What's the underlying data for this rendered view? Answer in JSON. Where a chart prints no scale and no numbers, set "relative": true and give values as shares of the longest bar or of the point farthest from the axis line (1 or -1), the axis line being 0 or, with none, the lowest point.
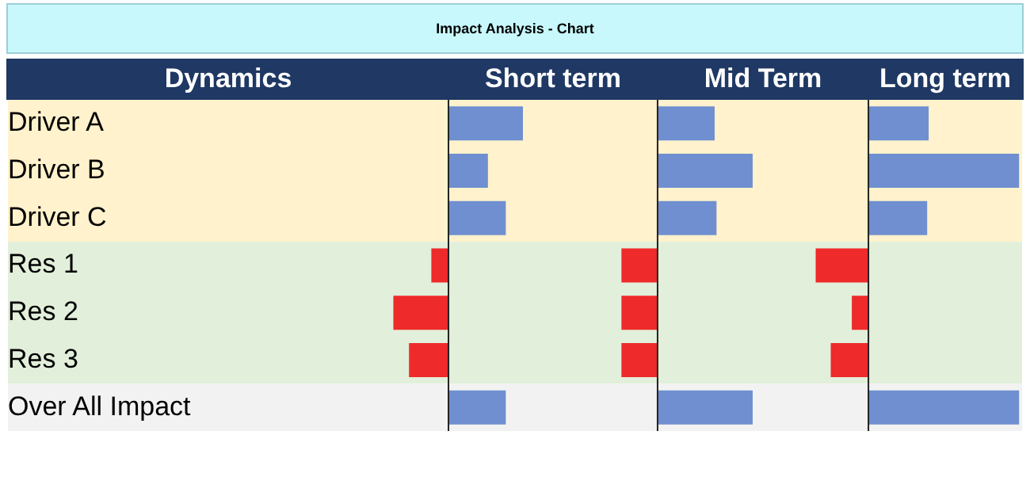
{
  "chart_data": [
    {
      "type": "bar",
      "orientation": "horizontal",
      "relative": true,
      "title": "Impact Analysis - Chart",
      "ylabel": "Dynamics",
      "xlabel": "Short term",
      "tick_labels": "y",
      "categories": [
        "Driver A",
        "Driver B",
        "Driver C",
        "Res 1",
        "Res 2",
        "Res 3",
        "Over All Impact"
      ],
      "values": [
        1,
        0.53,
        0.77,
        -0.23,
        -0.74,
        -0.53,
        0.77
      ],
      "colors": [
        "#6f8fd0",
        "#6f8fd0",
        "#6f8fd0",
        "#ee2a2a",
        "#ee2a2a",
        "#ee2a2a",
        "#6f8fd0"
      ],
      "bands": [
        {
          "axis": "y",
          "from": "Driver A",
          "to": "Driver C",
          "color": "#fff2cc"
        },
        {
          "axis": "y",
          "from": "Res 1",
          "to": "Res 3",
          "color": "#e2efda"
        },
        {
          "axis": "y",
          "from": "Over All Impact",
          "to": "Over All Impact",
          "color": "#f2f2f2"
        }
      ]
    },
    {
      "type": "bar",
      "orientation": "horizontal",
      "relative": true,
      "xlabel": "Mid Term",
      "tick_labels": false,
      "categories": [
        null,
        null,
        null,
        null,
        null,
        null,
        null
      ],
      "values": [
        0.6,
        1,
        0.62,
        -0.38,
        -0.38,
        -0.38,
        1
      ],
      "colors": [
        "#6f8fd0",
        "#6f8fd0",
        "#6f8fd0",
        "#ee2a2a",
        "#ee2a2a",
        "#ee2a2a",
        "#6f8fd0"
      ]
    },
    {
      "type": "bar",
      "orientation": "horizontal",
      "relative": true,
      "xlabel": "Long term",
      "tick_labels": false,
      "categories": [
        null,
        null,
        null,
        null,
        null,
        null,
        null
      ],
      "values": [
        0.4,
        1,
        0.39,
        -0.35,
        -0.11,
        -0.25,
        1
      ],
      "colors": [
        "#6f8fd0",
        "#6f8fd0",
        "#6f8fd0",
        "#ee2a2a",
        "#ee2a2a",
        "#ee2a2a",
        "#6f8fd0"
      ]
    }
  ]
}
